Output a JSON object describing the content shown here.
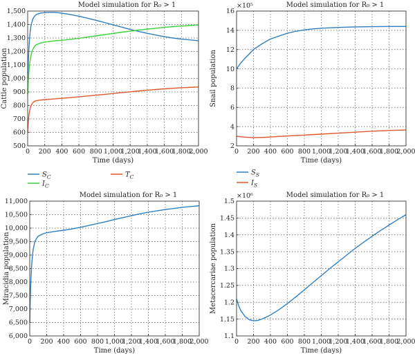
{
  "colors": {
    "blue": "#2f7fc1",
    "green": "#3ad33a",
    "red": "#e0572c"
  },
  "legend_fontstyle": "italic",
  "chart_data": [
    {
      "type": "line",
      "title": "Model simulation for R₀ > 1",
      "xlabel": "Time (days)",
      "ylabel": "Cattle population",
      "exponent": "",
      "xlim": [
        0,
        2000
      ],
      "ylim": [
        500,
        1500
      ],
      "grid": true,
      "legend_placement": "bottom",
      "xticks": [
        0,
        200,
        400,
        600,
        800,
        1000,
        1200,
        1400,
        1600,
        1800,
        2000
      ],
      "xticklabels": [
        "0",
        "200",
        "400",
        "600",
        "800",
        "1,000",
        "1,200",
        "1,400",
        "1,600",
        "1,800",
        "2,000"
      ],
      "yticks": [
        500,
        600,
        700,
        800,
        900,
        1000,
        1100,
        1200,
        1300,
        1400,
        1500
      ],
      "yticklabels": [
        "500",
        "600",
        "700",
        "800",
        "900",
        "1,000",
        "1,100",
        "1,200",
        "1,300",
        "1,400",
        "1,500"
      ],
      "series": [
        {
          "name": "S_C",
          "color": "blue",
          "x": [
            0,
            5,
            10,
            20,
            30,
            40,
            60,
            80,
            100,
            150,
            200,
            250,
            300,
            350,
            400,
            500,
            600,
            700,
            800,
            900,
            1000,
            1100,
            1200,
            1300,
            1400,
            1500,
            1600,
            1700,
            1800,
            1900,
            2000
          ],
          "y": [
            1000,
            1090,
            1170,
            1280,
            1350,
            1395,
            1440,
            1462,
            1474,
            1485,
            1488,
            1490,
            1490,
            1488,
            1484,
            1474,
            1462,
            1447,
            1431,
            1415,
            1398,
            1381,
            1364,
            1349,
            1335,
            1322,
            1310,
            1300,
            1292,
            1286,
            1280
          ]
        },
        {
          "name": "I_C",
          "color": "green",
          "x": [
            0,
            5,
            10,
            20,
            30,
            40,
            60,
            80,
            100,
            150,
            200,
            250,
            300,
            400,
            500,
            600,
            700,
            800,
            900,
            1000,
            1100,
            1200,
            1300,
            1400,
            1500,
            1600,
            1700,
            1800,
            1900,
            2000
          ],
          "y": [
            880,
            950,
            1010,
            1090,
            1140,
            1175,
            1215,
            1238,
            1250,
            1263,
            1270,
            1274,
            1278,
            1283,
            1290,
            1298,
            1307,
            1316,
            1325,
            1334,
            1343,
            1351,
            1359,
            1366,
            1373,
            1379,
            1384,
            1389,
            1393,
            1397
          ]
        },
        {
          "name": "T_C",
          "color": "red",
          "x": [
            0,
            5,
            10,
            20,
            30,
            40,
            60,
            80,
            100,
            150,
            200,
            300,
            400,
            500,
            600,
            700,
            800,
            900,
            1000,
            1100,
            1200,
            1300,
            1400,
            1500,
            1600,
            1700,
            1800,
            1900,
            2000
          ],
          "y": [
            600,
            660,
            705,
            750,
            780,
            800,
            820,
            830,
            835,
            840,
            843,
            848,
            853,
            858,
            864,
            870,
            876,
            882,
            888,
            895,
            901,
            907,
            913,
            918,
            923,
            927,
            931,
            934,
            937
          ]
        }
      ]
    },
    {
      "type": "line",
      "title": "Model simulation for R₀ > 1",
      "xlabel": "Time (days)",
      "ylabel": "Snail population",
      "exponent": "×10⁵",
      "xlim": [
        0,
        2000
      ],
      "ylim": [
        2,
        16
      ],
      "grid": true,
      "legend_placement": "bottom",
      "xticks": [
        0,
        200,
        400,
        600,
        800,
        1000,
        1200,
        1400,
        1600,
        1800,
        2000
      ],
      "xticklabels": [
        "0",
        "200",
        "400",
        "600",
        "800",
        "1,000",
        "1,200",
        "1,400",
        "1,600",
        "1,800",
        "2,000"
      ],
      "yticks": [
        2,
        4,
        6,
        8,
        10,
        12,
        14,
        16
      ],
      "yticklabels": [
        "2",
        "4",
        "6",
        "8",
        "10",
        "12",
        "14",
        "16"
      ],
      "series": [
        {
          "name": "S_S",
          "color": "blue",
          "x": [
            0,
            50,
            100,
            200,
            300,
            400,
            500,
            600,
            700,
            800,
            900,
            1000,
            1200,
            1400,
            1600,
            1800,
            2000
          ],
          "y": [
            10.0,
            10.6,
            11.1,
            12.0,
            12.6,
            13.1,
            13.4,
            13.7,
            13.9,
            14.05,
            14.15,
            14.22,
            14.3,
            14.35,
            14.38,
            14.4,
            14.4
          ]
        },
        {
          "name": "I_S",
          "color": "red",
          "x": [
            0,
            100,
            200,
            300,
            400,
            500,
            600,
            800,
            1000,
            1200,
            1400,
            1600,
            1800,
            2000
          ],
          "y": [
            3.0,
            2.9,
            2.85,
            2.87,
            2.92,
            2.98,
            3.03,
            3.12,
            3.22,
            3.32,
            3.42,
            3.52,
            3.6,
            3.65
          ]
        }
      ]
    },
    {
      "type": "line",
      "title": "Model simulation for R₀ > 1",
      "xlabel": "Time (days)",
      "ylabel": "Miracidia population",
      "exponent": "",
      "xlim": [
        0,
        2000
      ],
      "ylim": [
        6000,
        11000
      ],
      "grid": true,
      "legend_placement": "none",
      "xticks": [
        0,
        200,
        400,
        600,
        800,
        1000,
        1200,
        1400,
        1600,
        1800,
        2000
      ],
      "xticklabels": [
        "0",
        "200",
        "400",
        "600",
        "800",
        "1,000",
        "1,200",
        "1,400",
        "1,600",
        "1,800",
        "2,000"
      ],
      "yticks": [
        6000,
        6500,
        7000,
        7500,
        8000,
        8500,
        9000,
        9500,
        10000,
        10500,
        11000
      ],
      "yticklabels": [
        "6,000",
        "6,500",
        "7,000",
        "7,500",
        "8,000",
        "8,500",
        "9,000",
        "9,500",
        "10,000",
        "10,500",
        "11,000"
      ],
      "series": [
        {
          "name": "",
          "color": "blue",
          "x": [
            0,
            5,
            10,
            20,
            30,
            40,
            60,
            80,
            100,
            150,
            200,
            300,
            400,
            500,
            600,
            700,
            800,
            900,
            1000,
            1100,
            1200,
            1300,
            1400,
            1500,
            1600,
            1700,
            1800,
            1900,
            2000
          ],
          "y": [
            6500,
            7200,
            7800,
            8500,
            8900,
            9200,
            9500,
            9620,
            9700,
            9780,
            9830,
            9880,
            9920,
            9970,
            10030,
            10100,
            10170,
            10240,
            10320,
            10390,
            10460,
            10530,
            10590,
            10640,
            10690,
            10730,
            10770,
            10800,
            10830
          ]
        }
      ]
    },
    {
      "type": "line",
      "title": "Model simulation for R₀ > 1",
      "xlabel": "Time (days)",
      "ylabel": "Metacercariae population",
      "exponent": "×10⁶",
      "xlim": [
        0,
        2000
      ],
      "ylim": [
        1.1,
        1.5
      ],
      "grid": true,
      "legend_placement": "none",
      "xticks": [
        0,
        200,
        400,
        600,
        800,
        1000,
        1200,
        1400,
        1600,
        1800,
        2000
      ],
      "xticklabels": [
        "0",
        "200",
        "400",
        "600",
        "800",
        "1,000",
        "1,200",
        "1,400",
        "1,600",
        "1,800",
        "2,000"
      ],
      "yticks": [
        1.1,
        1.15,
        1.2,
        1.25,
        1.3,
        1.35,
        1.4,
        1.45,
        1.5
      ],
      "yticklabels": [
        "1.1",
        "1.15",
        "1.2",
        "1.25",
        "1.3",
        "1.35",
        "1.4",
        "1.45",
        "1.5"
      ],
      "series": [
        {
          "name": "",
          "color": "blue",
          "x": [
            0,
            25,
            50,
            100,
            150,
            200,
            250,
            300,
            400,
            500,
            600,
            700,
            800,
            900,
            1000,
            1100,
            1200,
            1300,
            1400,
            1500,
            1600,
            1700,
            1800,
            1900,
            2000
          ],
          "y": [
            1.21,
            1.19,
            1.175,
            1.158,
            1.148,
            1.145,
            1.146,
            1.15,
            1.162,
            1.178,
            1.196,
            1.216,
            1.237,
            1.258,
            1.279,
            1.3,
            1.32,
            1.34,
            1.36,
            1.378,
            1.396,
            1.413,
            1.429,
            1.445,
            1.46
          ]
        }
      ]
    }
  ]
}
